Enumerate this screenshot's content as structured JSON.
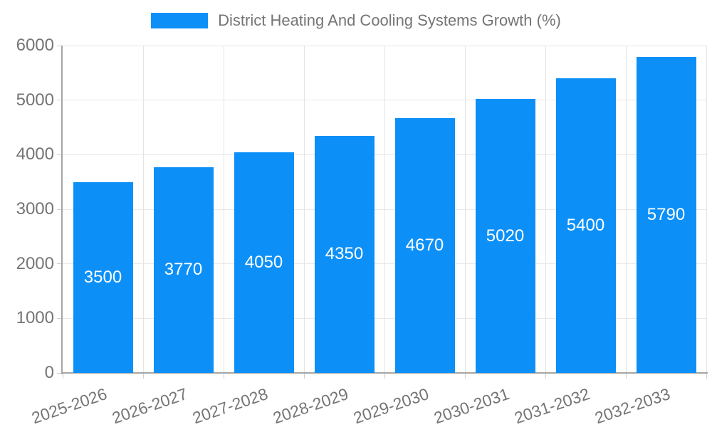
{
  "legend": {
    "label": "District Heating And Cooling Systems Growth (%)"
  },
  "chart_data": {
    "type": "bar",
    "title": "District Heating And Cooling Systems Growth (%)",
    "categories": [
      "2025-2026",
      "2026-2027",
      "2027-2028",
      "2028-2029",
      "2029-2030",
      "2030-2031",
      "2031-2032",
      "2032-2033"
    ],
    "values": [
      3500,
      3770,
      4050,
      4350,
      4670,
      5020,
      5400,
      5790
    ],
    "xlabel": "",
    "ylabel": "",
    "ylim": [
      0,
      6000
    ],
    "yticks": [
      0,
      1000,
      2000,
      3000,
      4000,
      5000,
      6000
    ],
    "grid": true,
    "legend_position": "top",
    "value_labels_inside_bars": true
  },
  "colors": {
    "bar": "#0C90F8",
    "value_text": "#ffffff",
    "tick_text": "#757575",
    "legend_text": "#757575",
    "gridline": "#e8e8e8",
    "axis_line": "#a6a6a6"
  }
}
